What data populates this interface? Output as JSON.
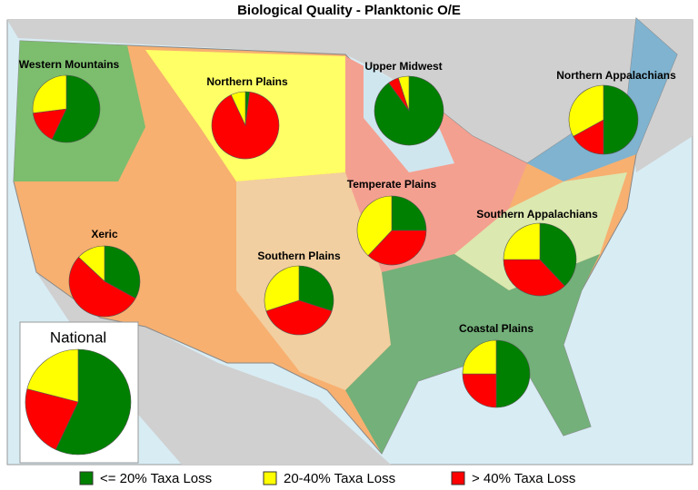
{
  "title": "Biological Quality - Planktonic O/E",
  "legend": {
    "categories": [
      "<= 20% Taxa Loss",
      "20-40% Taxa Loss",
      "> 40% Taxa Loss"
    ],
    "colors": [
      "#008000",
      "#ffff00",
      "#ff0000"
    ]
  },
  "chart_data": [
    {
      "type": "pie",
      "title": "Western Mountains",
      "values": [
        57,
        27,
        16
      ]
    },
    {
      "type": "pie",
      "title": "Northern Plains",
      "values": [
        2,
        7,
        91
      ]
    },
    {
      "type": "pie",
      "title": "Upper Midwest",
      "values": [
        90,
        5,
        5
      ]
    },
    {
      "type": "pie",
      "title": "Northern Appalachians",
      "values": [
        50,
        33,
        17
      ]
    },
    {
      "type": "pie",
      "title": "Temperate Plains",
      "values": [
        25,
        38,
        37
      ]
    },
    {
      "type": "pie",
      "title": "Southern Appalachians",
      "values": [
        38,
        25,
        37
      ]
    },
    {
      "type": "pie",
      "title": "Xeric",
      "values": [
        33,
        13,
        54
      ]
    },
    {
      "type": "pie",
      "title": "Southern Plains",
      "values": [
        30,
        30,
        40
      ]
    },
    {
      "type": "pie",
      "title": "Coastal Plains",
      "values": [
        50,
        25,
        25
      ]
    },
    {
      "type": "pie",
      "title": "National",
      "values": [
        57,
        21,
        22
      ]
    }
  ]
}
